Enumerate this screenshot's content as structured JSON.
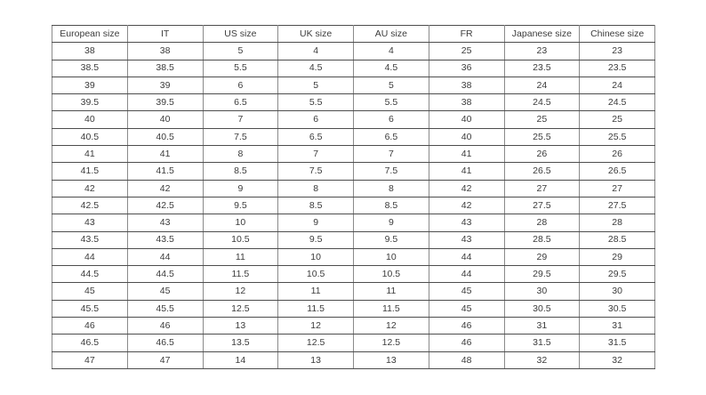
{
  "table": {
    "name": "shoe-size-conversion-table",
    "headers": [
      "European size",
      "IT",
      "US size",
      "UK size",
      "AU size",
      "FR",
      "Japanese size",
      "Chinese size"
    ],
    "rows": [
      [
        "38",
        "38",
        "5",
        "4",
        "4",
        "25",
        "23",
        "23"
      ],
      [
        "38.5",
        "38.5",
        "5.5",
        "4.5",
        "4.5",
        "36",
        "23.5",
        "23.5"
      ],
      [
        "39",
        "39",
        "6",
        "5",
        "5",
        "38",
        "24",
        "24"
      ],
      [
        "39.5",
        "39.5",
        "6.5",
        "5.5",
        "5.5",
        "38",
        "24.5",
        "24.5"
      ],
      [
        "40",
        "40",
        "7",
        "6",
        "6",
        "40",
        "25",
        "25"
      ],
      [
        "40.5",
        "40.5",
        "7.5",
        "6.5",
        "6.5",
        "40",
        "25.5",
        "25.5"
      ],
      [
        "41",
        "41",
        "8",
        "7",
        "7",
        "41",
        "26",
        "26"
      ],
      [
        "41.5",
        "41.5",
        "8.5",
        "7.5",
        "7.5",
        "41",
        "26.5",
        "26.5"
      ],
      [
        "42",
        "42",
        "9",
        "8",
        "8",
        "42",
        "27",
        "27"
      ],
      [
        "42.5",
        "42.5",
        "9.5",
        "8.5",
        "8.5",
        "42",
        "27.5",
        "27.5"
      ],
      [
        "43",
        "43",
        "10",
        "9",
        "9",
        "43",
        "28",
        "28"
      ],
      [
        "43.5",
        "43.5",
        "10.5",
        "9.5",
        "9.5",
        "43",
        "28.5",
        "28.5"
      ],
      [
        "44",
        "44",
        "11",
        "10",
        "10",
        "44",
        "29",
        "29"
      ],
      [
        "44.5",
        "44.5",
        "11.5",
        "10.5",
        "10.5",
        "44",
        "29.5",
        "29.5"
      ],
      [
        "45",
        "45",
        "12",
        "11",
        "11",
        "45",
        "30",
        "30"
      ],
      [
        "45.5",
        "45.5",
        "12.5",
        "11.5",
        "11.5",
        "45",
        "30.5",
        "30.5"
      ],
      [
        "46",
        "46",
        "13",
        "12",
        "12",
        "46",
        "31",
        "31"
      ],
      [
        "46.5",
        "46.5",
        "13.5",
        "12.5",
        "12.5",
        "46",
        "31.5",
        "31.5"
      ],
      [
        "47",
        "47",
        "14",
        "13",
        "13",
        "48",
        "32",
        "32"
      ]
    ],
    "colors": {
      "background": "#ffffff",
      "text": "#3c3c3c",
      "border_horizontal": "#4d4d4d",
      "border_vertical": "#8a8a8a"
    }
  }
}
